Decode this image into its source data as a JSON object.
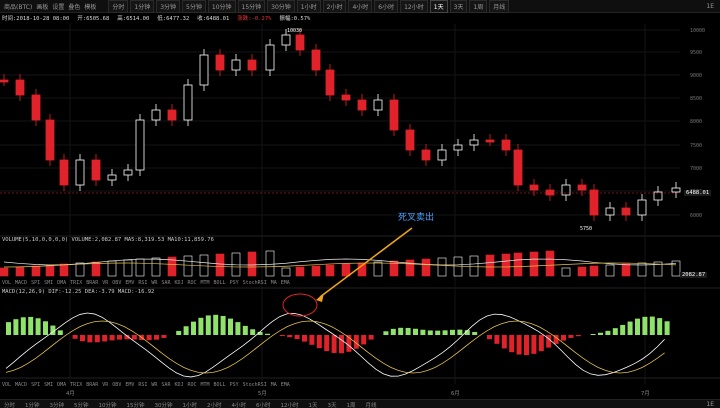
{
  "toolbar": {
    "items": [
      "商品(BTC)",
      "画板",
      "设置",
      "叠色",
      "模板"
    ],
    "timeframes": [
      "分时",
      "1分钟",
      "3分钟",
      "5分钟",
      "10分钟",
      "15分钟",
      "30分钟",
      "1小时",
      "2小时",
      "4小时",
      "6小时",
      "12小时",
      "1天",
      "3天",
      "1周",
      "月线"
    ],
    "selected_tf": "1天",
    "right": "1E"
  },
  "info": {
    "time": "时间:2018-10-28 08:00",
    "open": "开:6505.68",
    "high": "高:6514.00",
    "low": "低:6477.32",
    "close": "收:6488.01",
    "change": "涨跌:-0.27%",
    "amplitude": "振幅:0.57%"
  },
  "price_axis": {
    "labels": [
      "10000",
      "9500",
      "9000",
      "8500",
      "8000",
      "7500",
      "7000",
      "6500",
      "6000"
    ]
  },
  "price_tag": "6488.01",
  "high_mark": "10030",
  "low_mark": "5750",
  "volume_label": "VOLUME(5,10,0,0,0,0)  VOLUME:2,082.87  MA5:8,319.53  MA10:11,859.76",
  "volume_tag": "2082.87",
  "macd_label": "MACD(12,26,9)  DIF:-12.25  DEA:-3.79  MACD:-16.92",
  "indicator_tabs": [
    "VOL",
    "MACD",
    "SPI",
    "SMI",
    "DMA",
    "TRIX",
    "BRAR",
    "VR",
    "OBV",
    "EMV",
    "RSI",
    "WR",
    "SAR",
    "KDJ",
    "ROC",
    "MTM",
    "BOLL",
    "PSY",
    "StochRSI",
    "MA",
    "EMA"
  ],
  "annotation": "死叉卖出",
  "bottom": {
    "months": [
      "4月",
      "5月",
      "6月",
      "7月"
    ],
    "tabs": [
      "分时",
      "1分钟",
      "3分钟",
      "5分钟",
      "10分钟",
      "15分钟",
      "30分钟",
      "1小时",
      "2小时",
      "4小时",
      "6小时",
      "12小时",
      "1天",
      "3天",
      "1周",
      "月线"
    ],
    "right": "1E"
  },
  "colors": {
    "up": "#ffffff",
    "down": "#e0222a",
    "macd_up": "#8fe36a",
    "annotation": "#4aa3ff",
    "arrow": "#f2a51a"
  }
}
